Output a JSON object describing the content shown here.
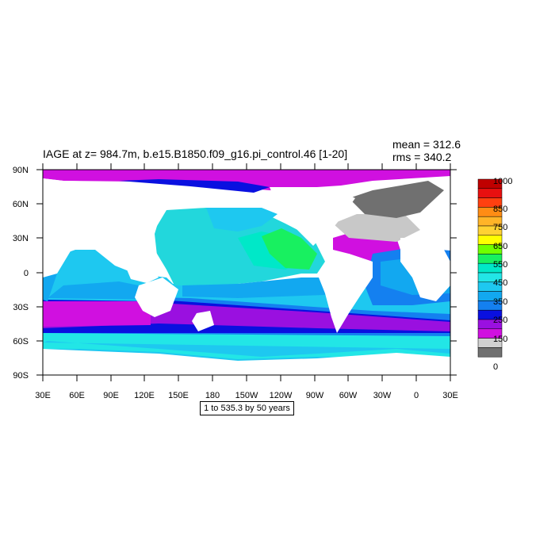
{
  "title": "IAGE at z= 984.7m, b.e15.B1850.f09_g16.pi_control.46 [1-20]",
  "stats": {
    "mean": "mean = 312.6",
    "rms": "rms = 340.2"
  },
  "subtitle": "1 to 535.3 by 50 years",
  "map": {
    "lat_labels": [
      "90N",
      "60N",
      "30N",
      "0",
      "30S",
      "60S",
      "90S"
    ],
    "lon_labels": [
      "30E",
      "60E",
      "90E",
      "120E",
      "150E",
      "180",
      "150W",
      "120W",
      "90W",
      "60W",
      "30W",
      "0",
      "30E"
    ],
    "land_color": "#ffffff",
    "ocean_regions": [
      {
        "region": "north-pacific",
        "color": "#22d7dc"
      },
      {
        "region": "north-pacific-center",
        "color": "#00e8c8"
      },
      {
        "region": "eastern-tropical-pacific",
        "color": "#18f060"
      },
      {
        "region": "southern-ocean-band",
        "color": "#9a10e0"
      },
      {
        "region": "south-indian-band",
        "color": "#d010e0"
      },
      {
        "region": "south-atlantic",
        "color": "#1480f0"
      },
      {
        "region": "north-atlantic",
        "color": "#c8c8c8"
      },
      {
        "region": "nordic-seas",
        "color": "#707070"
      },
      {
        "region": "antarctic-margin",
        "color": "#1ec8f0"
      }
    ]
  },
  "colorbar": {
    "levels": [
      "1000",
      "850",
      "750",
      "650",
      "550",
      "450",
      "350",
      "250",
      "150",
      "0"
    ],
    "colors": [
      "#c00000",
      "#e81010",
      "#ff4010",
      "#ff8c14",
      "#ffb428",
      "#ffd232",
      "#ffff00",
      "#70ff00",
      "#18f060",
      "#00e8c8",
      "#22e6e6",
      "#1ec8f0",
      "#12a8f0",
      "#1480f0",
      "#0a10e0",
      "#9a10e0",
      "#d010e0",
      "#d0d0d0",
      "#707070"
    ]
  }
}
